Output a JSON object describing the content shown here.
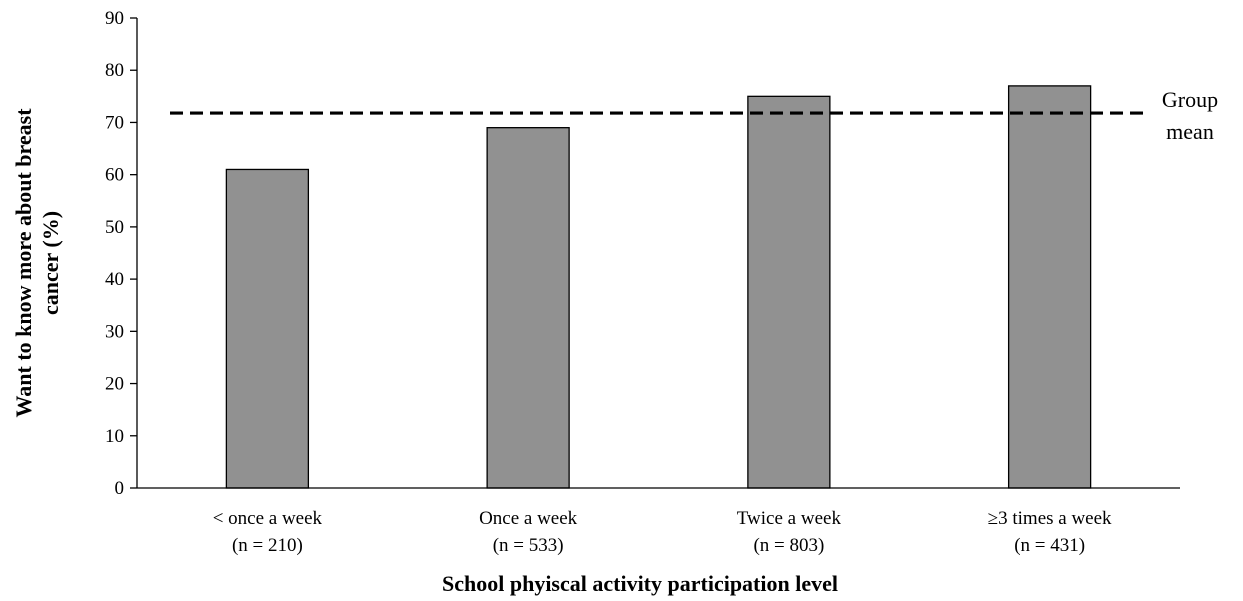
{
  "chart_data": {
    "type": "bar",
    "categories": [
      [
        "< once a week",
        "(n = 210)"
      ],
      [
        "Once a week",
        "(n = 533)"
      ],
      [
        "Twice a week",
        "(n = 803)"
      ],
      [
        "≥3 times a week",
        "(n = 431)"
      ]
    ],
    "values": [
      61,
      69,
      75,
      77
    ],
    "xlabel": "School phyiscal activity participation level",
    "ylabel": [
      "Want to know more about  breast",
      "cancer (%)"
    ],
    "ylim": [
      0,
      90
    ],
    "yticks": [
      0,
      10,
      20,
      30,
      40,
      50,
      60,
      70,
      80,
      90
    ],
    "reference_line": {
      "value": 71.8,
      "style": "dashed",
      "label": [
        "Group",
        "mean"
      ]
    },
    "colors": {
      "bar_fill": "#919191",
      "bar_stroke": "#000000"
    },
    "grid": false,
    "legend": "none"
  }
}
